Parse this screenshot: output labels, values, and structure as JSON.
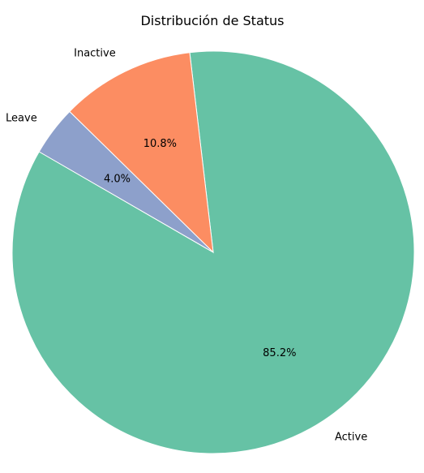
{
  "chart_data": {
    "type": "pie",
    "title": "Distribución de Status",
    "slices": [
      {
        "label": "Active",
        "value": 85.2,
        "pct_label": "85.2%",
        "color": "#66c2a5"
      },
      {
        "label": "Inactive",
        "value": 10.8,
        "pct_label": "10.8%",
        "color": "#fc8d62"
      },
      {
        "label": "Leave",
        "value": 4.0,
        "pct_label": "4.0%",
        "color": "#8da0cb"
      }
    ]
  }
}
